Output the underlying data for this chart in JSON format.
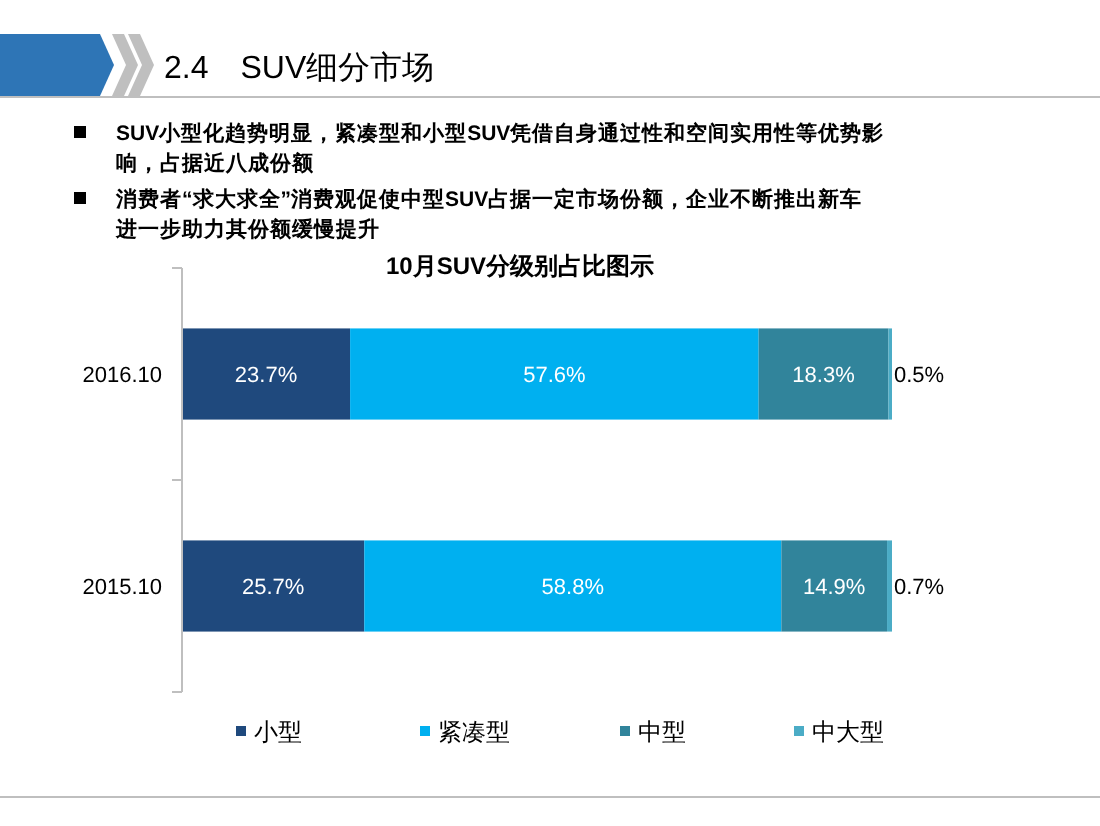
{
  "chart_data": {
    "type": "bar",
    "orientation": "horizontal",
    "stacked": true,
    "title": "2.4　SUV细分市场",
    "subtitle": "10月SUV分级别占比图示",
    "annotations": [
      "SUV小型化趋势明显，紧凑型和小型SUV凭借自身通过性和空间实用性等优势影响，占据近八成份额",
      "消费者“求大求全”消费观促使中型SUV占据一定市场份额，企业不断推出新车进一步助力其份额缓慢提升"
    ],
    "categories": [
      "2016.10",
      "2015.10"
    ],
    "series": [
      {
        "name": "小型",
        "color": "#1f497d",
        "values": [
          23.7,
          25.7
        ],
        "value_labels": [
          "23.7%",
          "25.7%"
        ]
      },
      {
        "name": "紧凑型",
        "color": "#00b0f0",
        "values": [
          57.6,
          58.8
        ],
        "value_labels": [
          "57.6%",
          "58.8%"
        ]
      },
      {
        "name": "中型",
        "color": "#31849b",
        "values": [
          18.3,
          14.9
        ],
        "value_labels": [
          "18.3%",
          "14.9%"
        ]
      },
      {
        "name": "中大型",
        "color": "#4bacc6",
        "values": [
          0.5,
          0.7
        ],
        "value_labels": [
          "0.5%",
          "0.7%"
        ]
      }
    ],
    "legend": "bottom"
  }
}
